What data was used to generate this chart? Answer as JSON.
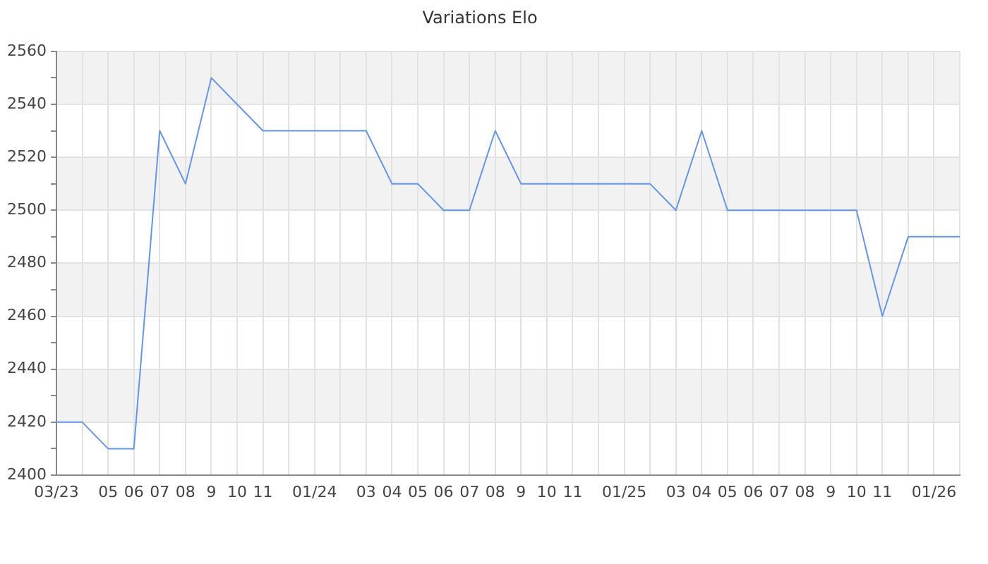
{
  "chart_data": {
    "type": "line",
    "title": "Variations Elo",
    "x": [
      "2023-03",
      "2023-04",
      "2023-05",
      "2023-06",
      "2023-07",
      "2023-08",
      "2023-09",
      "2023-10",
      "2023-11",
      "2023-12",
      "2024-01",
      "2024-02",
      "2024-03",
      "2024-04",
      "2024-05",
      "2024-06",
      "2024-07",
      "2024-08",
      "2024-09",
      "2024-10",
      "2024-11",
      "2024-12",
      "2025-01",
      "2025-02",
      "2025-03",
      "2025-04",
      "2025-05",
      "2025-06",
      "2025-07",
      "2025-08",
      "2025-09",
      "2025-10",
      "2025-11",
      "2025-12",
      "2026-01",
      "2026-02"
    ],
    "values": [
      2420,
      2420,
      2410,
      2410,
      2530,
      2510,
      2550,
      2540,
      2530,
      2530,
      2530,
      2530,
      2530,
      2510,
      2510,
      2500,
      2500,
      2530,
      2510,
      2510,
      2510,
      2510,
      2510,
      2510,
      2500,
      2530,
      2500,
      2500,
      2500,
      2500,
      2500,
      2500,
      2460,
      2490,
      2490,
      2490
    ],
    "color": "#6495ed",
    "xlim": [
      "2023-03",
      "2026-02"
    ],
    "xticks": [
      {
        "value": "2023-03",
        "label": "03/23"
      },
      {
        "value": "2023-04",
        "label": null
      },
      {
        "value": "2023-05",
        "label": "05"
      },
      {
        "value": "2023-06",
        "label": "06"
      },
      {
        "value": "2023-07",
        "label": "07"
      },
      {
        "value": "2023-08",
        "label": "08"
      },
      {
        "value": "2023-09",
        "label": "9"
      },
      {
        "value": "2023-10",
        "label": "10"
      },
      {
        "value": "2023-11",
        "label": "11"
      },
      {
        "value": "2023-12",
        "label": null
      },
      {
        "value": "2024-01",
        "label": "01/24"
      },
      {
        "value": "2024-02",
        "label": null
      },
      {
        "value": "2024-03",
        "label": "03"
      },
      {
        "value": "2024-04",
        "label": "04"
      },
      {
        "value": "2024-05",
        "label": "05"
      },
      {
        "value": "2024-06",
        "label": "06"
      },
      {
        "value": "2024-07",
        "label": "07"
      },
      {
        "value": "2024-08",
        "label": "08"
      },
      {
        "value": "2024-09",
        "label": "9"
      },
      {
        "value": "2024-10",
        "label": "10"
      },
      {
        "value": "2024-11",
        "label": "11"
      },
      {
        "value": "2024-12",
        "label": null
      },
      {
        "value": "2025-01",
        "label": "01/25"
      },
      {
        "value": "2025-02",
        "label": null
      },
      {
        "value": "2025-03",
        "label": "03"
      },
      {
        "value": "2025-04",
        "label": "04"
      },
      {
        "value": "2025-05",
        "label": "05"
      },
      {
        "value": "2025-06",
        "label": "06"
      },
      {
        "value": "2025-07",
        "label": "07"
      },
      {
        "value": "2025-08",
        "label": "08"
      },
      {
        "value": "2025-09",
        "label": "9"
      },
      {
        "value": "2025-10",
        "label": "10"
      },
      {
        "value": "2025-11",
        "label": "11"
      },
      {
        "value": "2025-12",
        "label": null
      },
      {
        "value": "2026-01",
        "label": "01/26"
      },
      {
        "value": "2026-02",
        "label": null
      }
    ],
    "ylim": [
      2400,
      2560
    ],
    "yticks": [
      2400,
      {
        "value": 2410,
        "label": null
      },
      2420,
      {
        "value": 2430,
        "label": null
      },
      2440,
      {
        "value": 2450,
        "label": null
      },
      2460,
      {
        "value": 2470,
        "label": null
      },
      2480,
      {
        "value": 2490,
        "label": null
      },
      2500,
      {
        "value": 2510,
        "label": null
      },
      2520,
      {
        "value": 2530,
        "label": null
      },
      2540,
      {
        "value": 2550,
        "label": null
      },
      2560
    ],
    "bands": [
      {
        "axis": "y",
        "from": 2420,
        "to": 2440,
        "color": "#f2f2f2"
      },
      {
        "axis": "y",
        "from": 2460,
        "to": 2480,
        "color": "#f2f2f2"
      },
      {
        "axis": "y",
        "from": 2500,
        "to": 2520,
        "color": "#f2f2f2"
      },
      {
        "axis": "y",
        "from": 2540,
        "to": 2560,
        "color": "#f2f2f2"
      }
    ],
    "grid": true,
    "legend": false,
    "marker": "none",
    "line_style": "solid"
  }
}
